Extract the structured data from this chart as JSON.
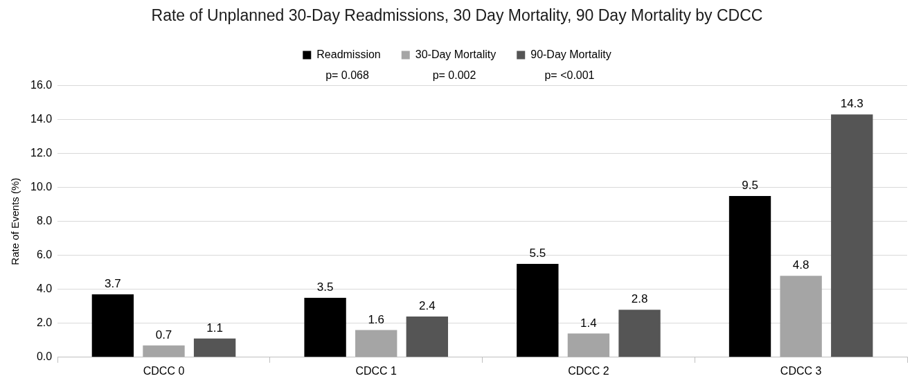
{
  "chart_data": {
    "type": "bar",
    "title": "Rate of Unplanned 30-Day Readmissions, 30 Day Mortality, 90 Day Mortality by CDCC",
    "ylabel": "Rate of Events (%)",
    "categories": [
      "CDCC 0",
      "CDCC 1",
      "CDCC 2",
      "CDCC 3"
    ],
    "series": [
      {
        "name": "Readmission",
        "color": "#000000",
        "values": [
          3.7,
          3.5,
          5.5,
          9.5
        ]
      },
      {
        "name": "30-Day Mortality",
        "color": "#a5a5a5",
        "values": [
          0.7,
          1.6,
          1.4,
          4.8
        ]
      },
      {
        "name": "90-Day Mortality",
        "color": "#555555",
        "values": [
          1.1,
          2.4,
          2.8,
          14.3
        ]
      }
    ],
    "ylim": [
      0,
      16
    ],
    "yticks": [
      {
        "value": 0,
        "label": "0.0"
      },
      {
        "value": 2,
        "label": "2.0"
      },
      {
        "value": 4,
        "label": "4.0"
      },
      {
        "value": 6,
        "label": "6.0"
      },
      {
        "value": 8,
        "label": "8.0"
      },
      {
        "value": 10,
        "label": "10.0"
      },
      {
        "value": 12,
        "label": "12.0"
      },
      {
        "value": 14,
        "label": "14.0"
      },
      {
        "value": 16,
        "label": "16.0"
      }
    ],
    "annotations": [
      "p= 0.068",
      "p= 0.002",
      "p= <0.001"
    ],
    "grid": "y",
    "legend": "top",
    "data_labels": true
  }
}
